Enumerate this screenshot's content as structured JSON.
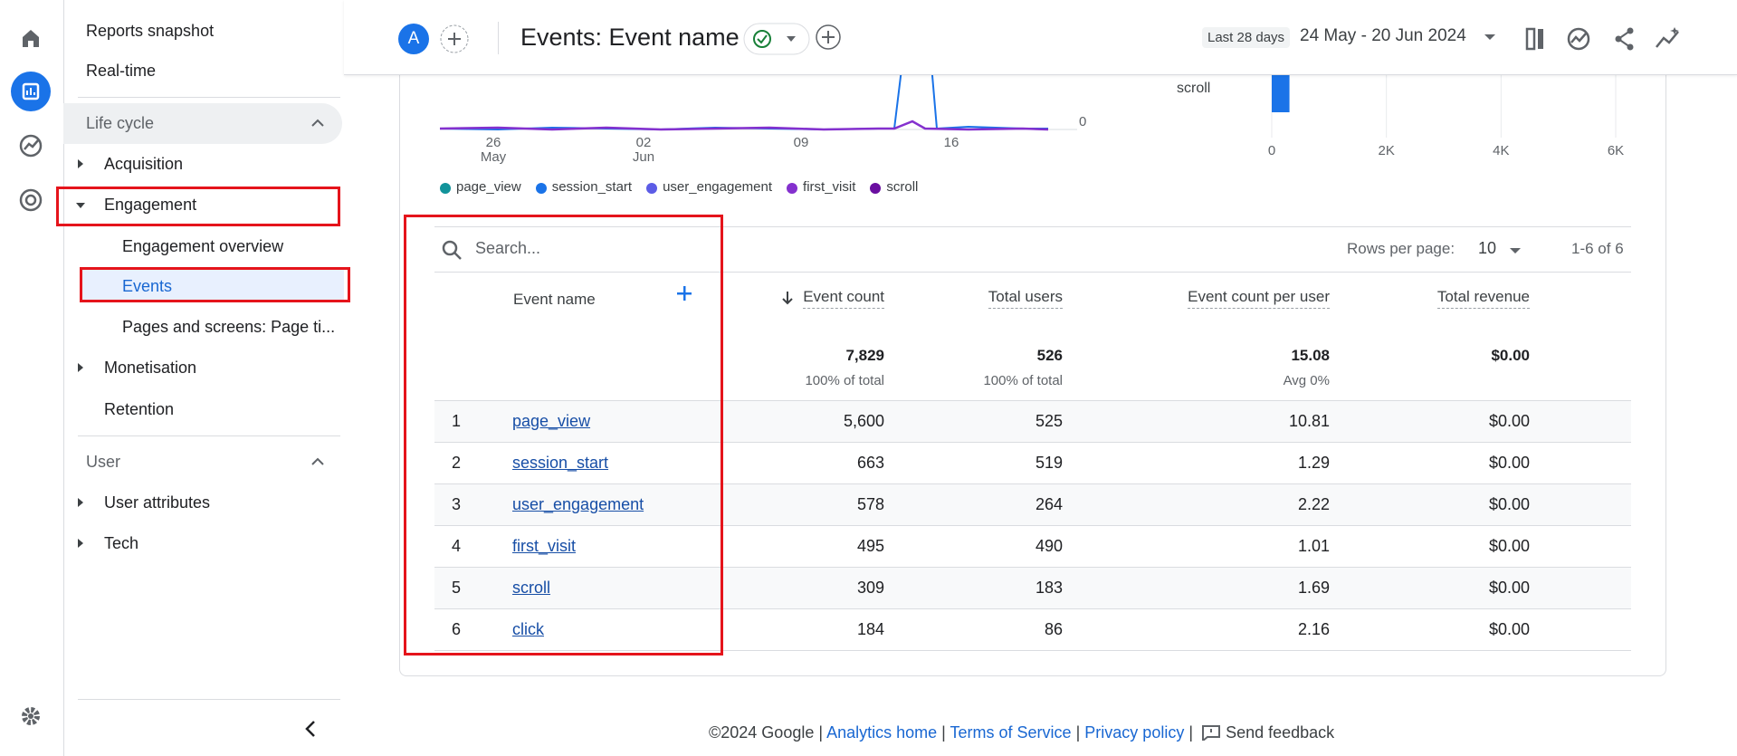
{
  "sidebar": {
    "top": [
      "Reports snapshot",
      "Real-time"
    ],
    "lifecycle": {
      "title": "Life cycle",
      "items": [
        "Acquisition",
        "Engagement",
        "Engagement overview",
        "Events",
        "Pages and screens: Page ti...",
        "Monetisation",
        "Retention"
      ]
    },
    "user": {
      "title": "User",
      "items": [
        "User attributes",
        "Tech"
      ]
    }
  },
  "header": {
    "avatar": "A",
    "title": "Events: Event name",
    "date_label": "Last 28 days",
    "date_range": "24 May - 20 Jun 2024"
  },
  "line_chart": {
    "x_labels": [
      "26",
      "02",
      "09",
      "16"
    ],
    "x_sublabels": [
      "May",
      "Jun"
    ],
    "y_label": "0",
    "legend": [
      {
        "name": "page_view",
        "color": "#12939a"
      },
      {
        "name": "session_start",
        "color": "#1a73e8"
      },
      {
        "name": "user_engagement",
        "color": "#5c5ce6"
      },
      {
        "name": "first_visit",
        "color": "#8430ce"
      },
      {
        "name": "scroll",
        "color": "#6a0fa0"
      }
    ]
  },
  "bar_chart": {
    "type": "bar",
    "categories": [
      "scroll"
    ],
    "values": [
      309
    ],
    "color": "#1a73e8",
    "xlim": [
      0,
      6000
    ],
    "xticks": [
      0,
      {
        "value": 2000,
        "label": "2K"
      },
      {
        "value": 4000,
        "label": "4K"
      },
      {
        "value": 6000,
        "label": "6K"
      }
    ]
  },
  "table": {
    "search_placeholder": "Search...",
    "rows_per_page_label": "Rows per page:",
    "rows_per_page": "10",
    "pagination": "1-6 of 6",
    "columns": [
      "Event name",
      "Event count",
      "Total users",
      "Event count per user",
      "Total revenue"
    ],
    "totals": [
      "7,829",
      "526",
      "15.08",
      "$0.00"
    ],
    "totals_sub": [
      "100% of total",
      "100% of total",
      "Avg 0%"
    ],
    "rows": [
      [
        "1",
        "page_view",
        "5,600",
        "525",
        "10.81",
        "$0.00"
      ],
      [
        "2",
        "session_start",
        "663",
        "519",
        "1.29",
        "$0.00"
      ],
      [
        "3",
        "user_engagement",
        "578",
        "264",
        "2.22",
        "$0.00"
      ],
      [
        "4",
        "first_visit",
        "495",
        "490",
        "1.01",
        "$0.00"
      ],
      [
        "5",
        "scroll",
        "309",
        "183",
        "1.69",
        "$0.00"
      ],
      [
        "6",
        "click",
        "184",
        "86",
        "2.16",
        "$0.00"
      ]
    ]
  },
  "footer": {
    "copyright": "©2024 Google",
    "separator": "|",
    "links": [
      "Analytics home",
      "Terms of Service",
      "Privacy policy"
    ],
    "feedback": "Send feedback"
  }
}
